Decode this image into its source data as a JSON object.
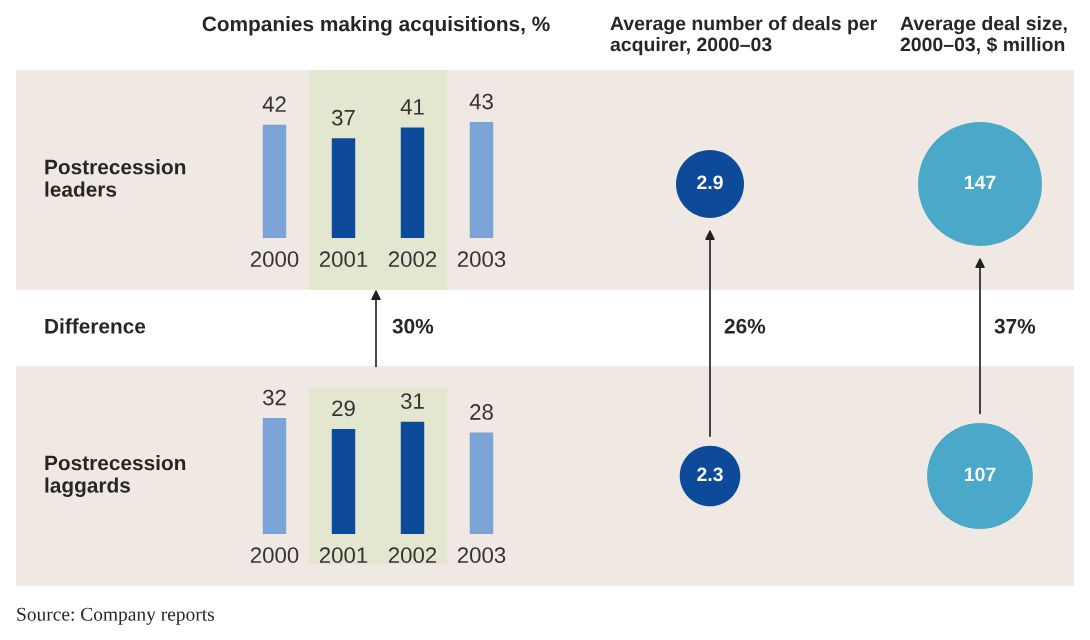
{
  "chart_data": [
    {
      "type": "bar",
      "title": "Companies making acquisitions, %",
      "ylabel": "Postrecession leaders",
      "categories": [
        "2000",
        "2001",
        "2002",
        "2003"
      ],
      "values": [
        42,
        37,
        41,
        43
      ],
      "colors": [
        "#7ba3d6",
        "#0d4a9a",
        "#0d4a9a",
        "#7ba3d6"
      ],
      "data_labels": true,
      "bands": [
        {
          "axis": "x",
          "from": "2001",
          "to": "2002",
          "color": "#e4e7d0"
        }
      ]
    },
    {
      "type": "bar",
      "ylabel": "Postrecession laggards",
      "categories": [
        "2000",
        "2001",
        "2002",
        "2003"
      ],
      "values": [
        32,
        29,
        31,
        28
      ],
      "colors": [
        "#7ba3d6",
        "#0d4a9a",
        "#0d4a9a",
        "#7ba3d6"
      ],
      "data_labels": true,
      "bands": [
        {
          "axis": "x",
          "from": "2001",
          "to": "2002",
          "color": "#e4e7d0"
        }
      ],
      "annotations": [
        "Difference",
        "30%"
      ]
    },
    {
      "type": "other",
      "title": "Average number of deals per acquirer, 2000–03",
      "categories": [
        null,
        null
      ],
      "values": [
        2.9,
        2.3
      ],
      "colors": [
        "#0d4a9a",
        "#0d4a9a"
      ],
      "data_labels": true,
      "annotations": [
        "26%"
      ]
    },
    {
      "type": "other",
      "title": "Average deal size, 2000–03, $ million",
      "categories": [
        null,
        null
      ],
      "values": [
        147,
        107
      ],
      "colors": [
        "#4aa8c8",
        "#4aa8c8"
      ],
      "data_labels": true,
      "annotations": [
        "37%",
        "Source: Company reports"
      ]
    }
  ]
}
